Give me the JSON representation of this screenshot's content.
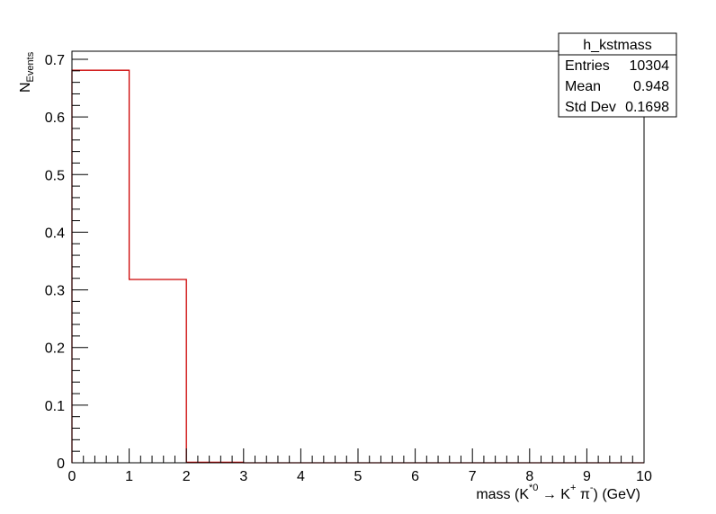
{
  "chart_data": {
    "type": "histogram",
    "title": "",
    "ylabel": {
      "main": "N",
      "sub": "Events"
    },
    "xlabel": {
      "prefix": "mass (K",
      "sup1": "*0",
      "arrow": " → K",
      "sup2": "+",
      "pi": " π",
      "sup3": "-",
      "suffix": ") (GeV)"
    },
    "xlim": [
      0,
      10
    ],
    "ylim": [
      0,
      0.714
    ],
    "x_ticks": [
      "0",
      "1",
      "2",
      "3",
      "4",
      "5",
      "6",
      "7",
      "8",
      "9",
      "10"
    ],
    "y_ticks": [
      "0",
      "0.1",
      "0.2",
      "0.3",
      "0.4",
      "0.5",
      "0.6",
      "0.7"
    ],
    "bin_edges": [
      0,
      1,
      2,
      3,
      4,
      5,
      6,
      7,
      8,
      9,
      10
    ],
    "values": [
      0.681,
      0.318,
      0.001,
      0,
      0,
      0,
      0,
      0,
      0,
      0
    ],
    "line_color": "#cc0000",
    "grid": false
  },
  "stats_box": {
    "name": "h_kstmass",
    "rows": [
      {
        "label": "Entries",
        "value": "10304"
      },
      {
        "label": "Mean",
        "value": "0.948"
      },
      {
        "label": "Std Dev",
        "value": "0.1698"
      }
    ]
  }
}
